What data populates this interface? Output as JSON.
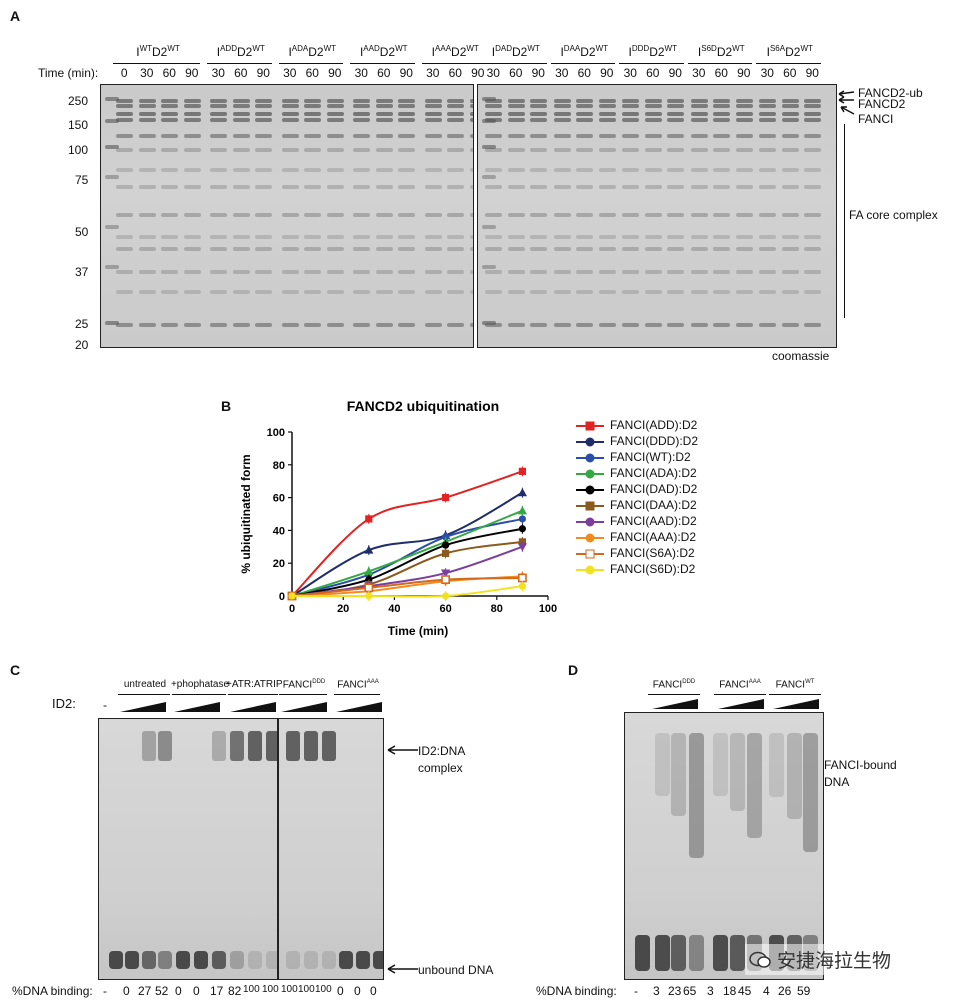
{
  "panelA": {
    "label": "A",
    "time_label": "Time (min):",
    "groups_left": [
      {
        "label": "I",
        "sup1": "WT",
        "mid": "D2",
        "sup2": "WT",
        "times": [
          "0",
          "30",
          "60",
          "90"
        ]
      },
      {
        "label": "I",
        "sup1": "ADD",
        "mid": "D2",
        "sup2": "WT",
        "times": [
          "30",
          "60",
          "90"
        ]
      },
      {
        "label": "I",
        "sup1": "ADA",
        "mid": "D2",
        "sup2": "WT",
        "times": [
          "30",
          "60",
          "90"
        ]
      },
      {
        "label": "I",
        "sup1": "AAD",
        "mid": "D2",
        "sup2": "WT",
        "times": [
          "30",
          "60",
          "90"
        ]
      },
      {
        "label": "I",
        "sup1": "AAA",
        "mid": "D2",
        "sup2": "WT",
        "times": [
          "30",
          "60",
          "90"
        ]
      }
    ],
    "groups_right": [
      {
        "label": "I",
        "sup1": "DAD",
        "mid": "D2",
        "sup2": "WT",
        "times": [
          "30",
          "60",
          "90"
        ]
      },
      {
        "label": "I",
        "sup1": "DAA",
        "mid": "D2",
        "sup2": "WT",
        "times": [
          "30",
          "60",
          "90"
        ]
      },
      {
        "label": "I",
        "sup1": "DDD",
        "mid": "D2",
        "sup2": "WT",
        "times": [
          "30",
          "60",
          "90"
        ]
      },
      {
        "label": "I",
        "sup1": "S6D",
        "mid": "D2",
        "sup2": "WT",
        "times": [
          "30",
          "60",
          "90"
        ]
      },
      {
        "label": "I",
        "sup1": "S6A",
        "mid": "D2",
        "sup2": "WT",
        "times": [
          "30",
          "60",
          "90"
        ]
      }
    ],
    "markers": [
      "250",
      "150",
      "100",
      "75",
      "50",
      "37",
      "25",
      "20"
    ],
    "right_labels": {
      "fancd2ub": "FANCD2-ub",
      "fancd2": "FANCD2",
      "fanci": "FANCI",
      "core": "FA core complex"
    },
    "stain": "coomassie"
  },
  "panelB": {
    "label": "B",
    "chart_data": {
      "type": "line",
      "title": "FANCD2 ubiquitination",
      "xlabel": "Time (min)",
      "ylabel": "% ubiquitinated form",
      "xlim": [
        0,
        100
      ],
      "ylim": [
        0,
        100
      ],
      "xticks": [
        "0",
        "20",
        "40",
        "60",
        "80",
        "100"
      ],
      "yticks": [
        "0",
        "20",
        "40",
        "60",
        "80",
        "100"
      ],
      "x": [
        0,
        30,
        60,
        90
      ],
      "series": [
        {
          "name": "FANCI(ADD):D2",
          "color": "#e02424",
          "marker": "square",
          "values": [
            0,
            47,
            60,
            76
          ]
        },
        {
          "name": "FANCI(DDD):D2",
          "color": "#1f2d6b",
          "marker": "triangle",
          "values": [
            0,
            28,
            37,
            63
          ]
        },
        {
          "name": "FANCI(WT):D2",
          "color": "#2b4fa8",
          "marker": "circle",
          "values": [
            0,
            13,
            36,
            47
          ]
        },
        {
          "name": "FANCI(ADA):D2",
          "color": "#35a843",
          "marker": "triangle",
          "values": [
            0,
            15,
            33,
            52
          ]
        },
        {
          "name": "FANCI(DAD):D2",
          "color": "#000000",
          "marker": "circle",
          "values": [
            0,
            10,
            31,
            41
          ]
        },
        {
          "name": "FANCI(DAA):D2",
          "color": "#8b5a1e",
          "marker": "square",
          "values": [
            0,
            7,
            26,
            33
          ]
        },
        {
          "name": "FANCI(AAD):D2",
          "color": "#7a3e9d",
          "marker": "triangle-down",
          "values": [
            0,
            6,
            14,
            30
          ]
        },
        {
          "name": "FANCI(AAA):D2",
          "color": "#f28c1e",
          "marker": "diamond",
          "values": [
            0,
            3,
            9,
            12
          ]
        },
        {
          "name": "FANCI(S6A):D2",
          "color": "#d2691e",
          "marker": "square-open",
          "values": [
            0,
            5,
            10,
            11
          ]
        },
        {
          "name": "FANCI(S6D):D2",
          "color": "#f2e21e",
          "marker": "circle",
          "values": [
            0,
            0,
            0,
            6
          ]
        }
      ]
    }
  },
  "panelC": {
    "label": "C",
    "groups": [
      {
        "label": "untreated",
        "sup": ""
      },
      {
        "label": "+phophatase",
        "sup": ""
      },
      {
        "label": "+ATR:ATRIP",
        "sup": ""
      },
      {
        "label": "FANCI",
        "sup": "DDD"
      },
      {
        "label": "FANCI",
        "sup": "AAA"
      }
    ],
    "id2_label": "ID2:",
    "dash": "-",
    "complex_label_1": "ID2:DNA",
    "complex_label_2": "complex",
    "unbound_label": "unbound DNA",
    "binding_label": "%DNA binding:",
    "binding_values": [
      "-",
      "0",
      "27",
      "52",
      "0",
      "0",
      "17",
      "82",
      "100",
      "100",
      "100",
      "100",
      "100",
      "0",
      "0",
      "0"
    ]
  },
  "panelD": {
    "label": "D",
    "groups": [
      {
        "label": "FANCI",
        "sup": "DDD"
      },
      {
        "label": "FANCI",
        "sup": "AAA"
      },
      {
        "label": "FANCI",
        "sup": "WT"
      }
    ],
    "bound_label_1": "FANCI-bound",
    "bound_label_2": "DNA",
    "binding_label": "%DNA binding:",
    "binding_values": [
      "-",
      "3",
      "23",
      "65",
      "3",
      "18",
      "45",
      "4",
      "26",
      "59"
    ],
    "watermark": "安捷海拉生物"
  }
}
